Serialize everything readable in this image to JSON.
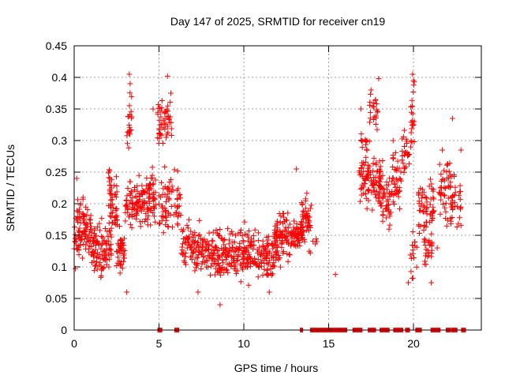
{
  "chart_data": {
    "type": "scatter",
    "title": "Day 147 of 2025, SRMTID for receiver cn19",
    "xlabel": "GPS time / hours",
    "ylabel": "SRMTID / TECUs",
    "xlim": [
      0,
      24
    ],
    "ylim": [
      0,
      0.45
    ],
    "x_ticks": [
      0,
      5,
      10,
      15,
      20
    ],
    "x_tick_labels": [
      "0",
      "5",
      "10",
      "15",
      "20"
    ],
    "y_ticks": [
      0,
      0.05,
      0.1,
      0.15,
      0.2,
      0.25,
      0.3,
      0.35,
      0.4,
      0.45
    ],
    "y_tick_labels": [
      "0",
      "0.05",
      "0.1",
      "0.15",
      "0.2",
      "0.25",
      "0.3",
      "0.35",
      "0.4",
      "0.45"
    ],
    "grid": true,
    "marker": "plus",
    "marker_color": "#ff0000",
    "series": [
      {
        "name": "SRMTID",
        "clusters": [
          {
            "x_range": [
              0.0,
              1.0
            ],
            "y_mean": 0.16,
            "y_spread": 0.05,
            "n": 90
          },
          {
            "x_range": [
              1.0,
              2.2
            ],
            "y_mean": 0.13,
            "y_spread": 0.04,
            "n": 100
          },
          {
            "x_range": [
              2.0,
              2.6
            ],
            "y_mean": 0.21,
            "y_spread": 0.05,
            "n": 50
          },
          {
            "x_range": [
              2.5,
              3.0
            ],
            "y_mean": 0.12,
            "y_spread": 0.04,
            "n": 40
          },
          {
            "x_range": [
              3.1,
              3.4
            ],
            "y_mean": 0.33,
            "y_spread": 0.05,
            "n": 20
          },
          {
            "x_range": [
              3.0,
              4.0
            ],
            "y_mean": 0.2,
            "y_spread": 0.04,
            "n": 70
          },
          {
            "x_range": [
              4.0,
              4.8
            ],
            "y_mean": 0.21,
            "y_spread": 0.05,
            "n": 70
          },
          {
            "x_range": [
              4.9,
              5.8
            ],
            "y_mean": 0.33,
            "y_spread": 0.04,
            "n": 50
          },
          {
            "x_range": [
              5.0,
              6.3
            ],
            "y_mean": 0.2,
            "y_spread": 0.05,
            "n": 70
          },
          {
            "x_range": [
              6.3,
              7.5
            ],
            "y_mean": 0.13,
            "y_spread": 0.04,
            "n": 80
          },
          {
            "x_range": [
              7.5,
              9.0
            ],
            "y_mean": 0.12,
            "y_spread": 0.04,
            "n": 110
          },
          {
            "x_range": [
              9.0,
              10.5
            ],
            "y_mean": 0.12,
            "y_spread": 0.045,
            "n": 110
          },
          {
            "x_range": [
              10.5,
              12.0
            ],
            "y_mean": 0.12,
            "y_spread": 0.04,
            "n": 100
          },
          {
            "x_range": [
              11.8,
              12.8
            ],
            "y_mean": 0.15,
            "y_spread": 0.045,
            "n": 80
          },
          {
            "x_range": [
              12.8,
              13.5
            ],
            "y_mean": 0.15,
            "y_spread": 0.02,
            "n": 60
          },
          {
            "x_range": [
              13.4,
              14.0
            ],
            "y_mean": 0.17,
            "y_spread": 0.04,
            "n": 45
          },
          {
            "x_range": [
              14.0,
              14.3
            ],
            "y_mean": 0.14,
            "y_spread": 0.01,
            "n": 3
          },
          {
            "x_range": [
              16.9,
              17.3
            ],
            "y_mean": 0.3,
            "y_spread": 0.03,
            "n": 12
          },
          {
            "x_range": [
              16.8,
              18.2
            ],
            "y_mean": 0.24,
            "y_spread": 0.04,
            "n": 100
          },
          {
            "x_range": [
              17.4,
              17.9
            ],
            "y_mean": 0.34,
            "y_spread": 0.035,
            "n": 22
          },
          {
            "x_range": [
              18.0,
              18.7
            ],
            "y_mean": 0.2,
            "y_spread": 0.04,
            "n": 45
          },
          {
            "x_range": [
              18.7,
              19.3
            ],
            "y_mean": 0.24,
            "y_spread": 0.05,
            "n": 40
          },
          {
            "x_range": [
              19.3,
              19.8
            ],
            "y_mean": 0.28,
            "y_spread": 0.04,
            "n": 25
          },
          {
            "x_range": [
              19.8,
              20.1
            ],
            "y_mean": 0.34,
            "y_spread": 0.05,
            "n": 20
          },
          {
            "x_range": [
              19.8,
              20.2
            ],
            "y_mean": 0.12,
            "y_spread": 0.04,
            "n": 15
          },
          {
            "x_range": [
              20.3,
              21.2
            ],
            "y_mean": 0.2,
            "y_spread": 0.045,
            "n": 60
          },
          {
            "x_range": [
              20.6,
              21.1
            ],
            "y_mean": 0.13,
            "y_spread": 0.03,
            "n": 25
          },
          {
            "x_range": [
              21.5,
              22.2
            ],
            "y_mean": 0.22,
            "y_spread": 0.05,
            "n": 45
          },
          {
            "x_range": [
              22.2,
              22.8
            ],
            "y_mean": 0.2,
            "y_spread": 0.05,
            "n": 35
          }
        ],
        "points": [
          [
            0.15,
            0.24
          ],
          [
            3.25,
            0.405
          ],
          [
            3.3,
            0.39
          ],
          [
            5.5,
            0.402
          ],
          [
            5.7,
            0.375
          ],
          [
            3.1,
            0.06
          ],
          [
            8.6,
            0.04
          ],
          [
            14.3,
            0.14
          ],
          [
            15.4,
            0.088
          ],
          [
            17.95,
            0.398
          ],
          [
            19.95,
            0.405
          ],
          [
            20.0,
            0.395
          ],
          [
            22.3,
            0.335
          ],
          [
            22.8,
            0.285
          ],
          [
            21.7,
            0.285
          ],
          [
            17.5,
            0.38
          ],
          [
            16.9,
            0.35
          ],
          [
            4.65,
            0.35
          ],
          [
            7.3,
            0.06
          ],
          [
            11.5,
            0.06
          ],
          [
            13.1,
            0.255
          ],
          [
            21.05,
            0.075
          ],
          [
            19.7,
            0.075
          ],
          [
            18.8,
            0.3
          ],
          [
            21.4,
            0.13
          ]
        ],
        "zero_points_x": [
          5.0,
          5.1,
          6.0,
          6.1,
          13.4,
          14.0,
          14.1,
          14.2,
          14.3,
          14.4,
          14.5,
          14.6,
          14.7,
          14.8,
          14.9,
          15.0,
          15.1,
          15.2,
          15.3,
          15.4,
          15.5,
          15.6,
          15.7,
          15.8,
          15.9,
          16.0,
          16.5,
          16.6,
          16.7,
          16.8,
          16.9,
          17.4,
          17.5,
          17.6,
          17.7,
          18.1,
          18.2,
          18.3,
          18.4,
          18.5,
          18.9,
          19.0,
          19.1,
          19.2,
          19.3,
          19.6,
          19.7,
          20.2,
          20.3,
          20.4,
          21.1,
          21.2,
          21.3,
          21.4,
          21.5,
          22.0,
          22.1,
          22.3,
          22.4,
          22.5,
          22.9,
          23.0
        ]
      }
    ]
  }
}
